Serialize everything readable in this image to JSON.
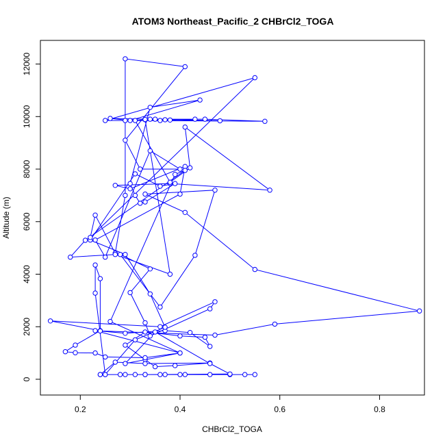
{
  "chart_data": {
    "type": "line",
    "title": "ATOM3 Northeast_Pacific_2 CHBrCl2_TOGA",
    "xlabel": "CHBrCl2_TOGA",
    "ylabel": "Altitude (m)",
    "xlim": [
      0.12,
      0.89
    ],
    "ylim": [
      -600,
      12900
    ],
    "xticks": [
      {
        "value": 0.2,
        "label": "0.2"
      },
      {
        "value": 0.4,
        "label": "0.4"
      },
      {
        "value": 0.6,
        "label": "0.6"
      },
      {
        "value": 0.8,
        "label": "0.8"
      }
    ],
    "yticks": [
      {
        "value": 0,
        "label": "0"
      },
      {
        "value": 2000,
        "label": "2000"
      },
      {
        "value": 4000,
        "label": "4000"
      },
      {
        "value": 6000,
        "label": "6000"
      },
      {
        "value": 8000,
        "label": "8000"
      },
      {
        "value": 10000,
        "label": "10000"
      },
      {
        "value": 12000,
        "label": "12000"
      }
    ],
    "color": "#0000ff",
    "marker": "open-circle",
    "series": [
      {
        "points": [
          [
            0.24,
            180
          ],
          [
            0.29,
            180
          ],
          [
            0.33,
            180
          ],
          [
            0.37,
            180
          ],
          [
            0.4,
            180
          ],
          [
            0.46,
            180
          ],
          [
            0.5,
            180
          ],
          [
            0.55,
            180
          ],
          [
            0.53,
            180
          ],
          [
            0.41,
            180
          ],
          [
            0.36,
            180
          ],
          [
            0.31,
            180
          ],
          [
            0.28,
            180
          ],
          [
            0.25,
            180
          ],
          [
            0.24,
            180
          ],
          [
            0.27,
            650
          ],
          [
            0.33,
            600
          ],
          [
            0.46,
            620
          ],
          [
            0.39,
            520
          ],
          [
            0.35,
            480
          ],
          [
            0.33,
            750
          ],
          [
            0.29,
            1300
          ],
          [
            0.33,
            1800
          ],
          [
            0.4,
            1650
          ],
          [
            0.45,
            1600
          ],
          [
            0.46,
            1250
          ],
          [
            0.42,
            1780
          ],
          [
            0.37,
            1850
          ],
          [
            0.29,
            1750
          ],
          [
            0.23,
            1850
          ],
          [
            0.4,
            1000
          ],
          [
            0.33,
            820
          ],
          [
            0.25,
            850
          ],
          [
            0.23,
            1000
          ],
          [
            0.19,
            1010
          ],
          [
            0.17,
            1050
          ],
          [
            0.19,
            1300
          ],
          [
            0.24,
            1850
          ],
          [
            0.14,
            2220
          ],
          [
            0.36,
            2000
          ],
          [
            0.47,
            2950
          ],
          [
            0.46,
            2680
          ],
          [
            0.34,
            1650
          ],
          [
            0.33,
            2150
          ],
          [
            0.3,
            3300
          ],
          [
            0.34,
            4200
          ],
          [
            0.28,
            4750
          ],
          [
            0.36,
            2750
          ],
          [
            0.43,
            4720
          ],
          [
            0.47,
            7200
          ],
          [
            0.33,
            7050
          ],
          [
            0.41,
            6350
          ],
          [
            0.55,
            4180
          ],
          [
            0.88,
            2600
          ],
          [
            0.59,
            2100
          ],
          [
            0.47,
            1680
          ],
          [
            0.24,
            1840
          ],
          [
            0.24,
            3830
          ],
          [
            0.23,
            4350
          ],
          [
            0.23,
            3280
          ],
          [
            0.25,
            180
          ],
          [
            0.31,
            1500
          ],
          [
            0.37,
            1980
          ],
          [
            0.34,
            3250
          ],
          [
            0.29,
            4750
          ],
          [
            0.22,
            5300
          ],
          [
            0.31,
            7820
          ],
          [
            0.36,
            7350
          ],
          [
            0.39,
            7450
          ],
          [
            0.33,
            6750
          ],
          [
            0.32,
            6700
          ],
          [
            0.31,
            7000
          ],
          [
            0.3,
            7450
          ],
          [
            0.34,
            10350
          ],
          [
            0.44,
            10630
          ],
          [
            0.3,
            9850
          ],
          [
            0.26,
            9930
          ],
          [
            0.34,
            9900
          ],
          [
            0.37,
            9880
          ],
          [
            0.43,
            9900
          ],
          [
            0.38,
            9870
          ],
          [
            0.33,
            9880
          ],
          [
            0.36,
            9850
          ],
          [
            0.48,
            9840
          ],
          [
            0.35,
            9900
          ],
          [
            0.45,
            9900
          ],
          [
            0.57,
            9820
          ],
          [
            0.29,
            9850
          ],
          [
            0.25,
            9850
          ],
          [
            0.55,
            11480
          ],
          [
            0.22,
            5400
          ],
          [
            0.23,
            6250
          ],
          [
            0.27,
            4800
          ],
          [
            0.29,
            7000
          ],
          [
            0.29,
            12200
          ],
          [
            0.41,
            11900
          ],
          [
            0.29,
            9100
          ],
          [
            0.32,
            8000
          ],
          [
            0.4,
            8000
          ],
          [
            0.34,
            8700
          ],
          [
            0.25,
            4650
          ],
          [
            0.23,
            5300
          ],
          [
            0.4,
            7050
          ],
          [
            0.41,
            8100
          ],
          [
            0.3,
            7250
          ],
          [
            0.27,
            7380
          ],
          [
            0.38,
            7450
          ],
          [
            0.58,
            7200
          ],
          [
            0.41,
            9600
          ],
          [
            0.42,
            8050
          ],
          [
            0.38,
            7500
          ],
          [
            0.31,
            9850
          ],
          [
            0.33,
            9890
          ],
          [
            0.38,
            4000
          ],
          [
            0.27,
            4750
          ],
          [
            0.18,
            4650
          ],
          [
            0.21,
            5290
          ],
          [
            0.41,
            7950
          ],
          [
            0.39,
            7800
          ],
          [
            0.26,
            2200
          ],
          [
            0.4,
            1000
          ],
          [
            0.29,
            600
          ],
          [
            0.35,
            1800
          ],
          [
            0.46,
            600
          ],
          [
            0.5,
            200
          ],
          [
            0.33,
            180
          ]
        ]
      }
    ]
  }
}
